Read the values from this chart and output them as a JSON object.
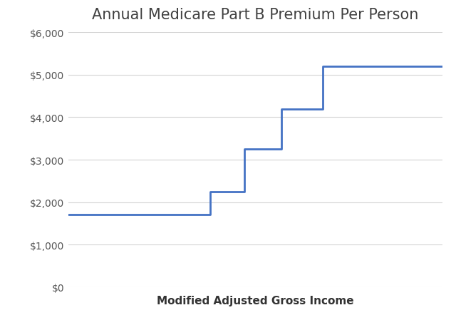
{
  "title": "Annual Medicare Part B Premium Per Person",
  "xlabel": "Modified Adjusted Gross Income",
  "line_color": "#4472C4",
  "background_color": "#ffffff",
  "grid_color": "#d3d3d3",
  "title_fontsize": 15,
  "xlabel_fontsize": 11,
  "ytick_fontsize": 10,
  "ylim": [
    0,
    6000
  ],
  "ytick_step": 1000,
  "step_x": [
    0,
    38,
    38,
    47,
    47,
    57,
    57,
    68,
    68,
    80,
    80,
    100
  ],
  "step_y": [
    1700,
    1700,
    2250,
    2250,
    3250,
    3250,
    4200,
    4200,
    5200,
    5200,
    5200,
    5200
  ]
}
